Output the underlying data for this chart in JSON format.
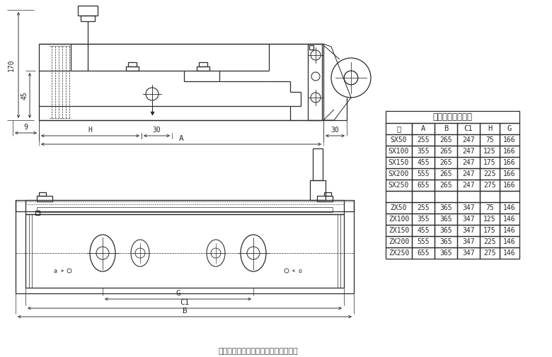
{
  "bg_color": "#ffffff",
  "table_title": "中型双缸外形尺寸",
  "table_headers": [
    "型",
    "A",
    "B",
    "C1",
    "H",
    "G"
  ],
  "table_data": [
    [
      "SX50",
      "255",
      "265",
      "247",
      "75",
      "166"
    ],
    [
      "SX100",
      "355",
      "265",
      "247",
      "125",
      "166"
    ],
    [
      "SX150",
      "455",
      "265",
      "247",
      "175",
      "166"
    ],
    [
      "SX200",
      "555",
      "265",
      "247",
      "225",
      "166"
    ],
    [
      "SX250",
      "655",
      "265",
      "247",
      "275",
      "166"
    ],
    [
      "",
      "",
      "",
      "",
      "",
      ""
    ],
    [
      "ZX50",
      "255",
      "365",
      "347",
      "75",
      "146"
    ],
    [
      "ZX100",
      "355",
      "365",
      "347",
      "125",
      "146"
    ],
    [
      "ZX150",
      "455",
      "365",
      "347",
      "175",
      "146"
    ],
    [
      "ZX200",
      "555",
      "365",
      "347",
      "225",
      "146"
    ],
    [
      "ZX250",
      "655",
      "365",
      "347",
      "275",
      "146"
    ]
  ],
  "footer_text": "广州市番禺区大石大地机床工具经营部",
  "lc": "#2a2a2a",
  "lw": 0.9
}
